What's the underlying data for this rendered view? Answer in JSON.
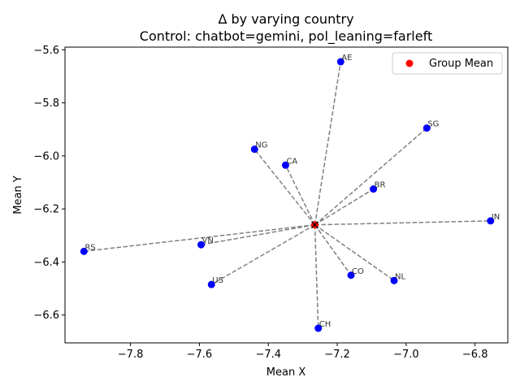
{
  "chart_data": {
    "type": "scatter",
    "title_line1": "Δ by varying country",
    "title_line2": "Control: chatbot=gemini, pol_leaning=farleft",
    "xlabel": "Mean X",
    "ylabel": "Mean Y",
    "xlim": [
      -7.99,
      -6.705
    ],
    "ylim": [
      -6.705,
      -5.59
    ],
    "xticks": [
      -7.8,
      -7.6,
      -7.4,
      -7.2,
      -7.0,
      -6.8
    ],
    "xtick_labels": [
      "−7.8",
      "−7.6",
      "−7.4",
      "−7.2",
      "−7.0",
      "−6.8"
    ],
    "yticks": [
      -6.6,
      -6.4,
      -6.2,
      -6.0,
      -5.8,
      -5.6
    ],
    "ytick_labels": [
      "−6.6",
      "−6.4",
      "−6.2",
      "−6.0",
      "−5.8",
      "−5.6"
    ],
    "group_mean": {
      "name": "Group Mean",
      "x": -7.265,
      "y": -6.26
    },
    "points": [
      {
        "label": "AE",
        "x": -7.19,
        "y": -5.645
      },
      {
        "label": "SG",
        "x": -6.94,
        "y": -5.895
      },
      {
        "label": "NG",
        "x": -7.44,
        "y": -5.975
      },
      {
        "label": "CA",
        "x": -7.35,
        "y": -6.035
      },
      {
        "label": "BR",
        "x": -7.095,
        "y": -6.125
      },
      {
        "label": "IN",
        "x": -6.755,
        "y": -6.245
      },
      {
        "label": "VN",
        "x": -7.595,
        "y": -6.335
      },
      {
        "label": "RS",
        "x": -7.935,
        "y": -6.36
      },
      {
        "label": "CO",
        "x": -7.16,
        "y": -6.45
      },
      {
        "label": "NL",
        "x": -7.035,
        "y": -6.47
      },
      {
        "label": "US",
        "x": -7.565,
        "y": -6.485
      },
      {
        "label": "CH",
        "x": -7.255,
        "y": -6.65
      }
    ],
    "legend_position": "upper right",
    "colors": {
      "points": "#0000ff",
      "mean": "#ff0000",
      "lines": "#808080"
    },
    "grid": false
  }
}
